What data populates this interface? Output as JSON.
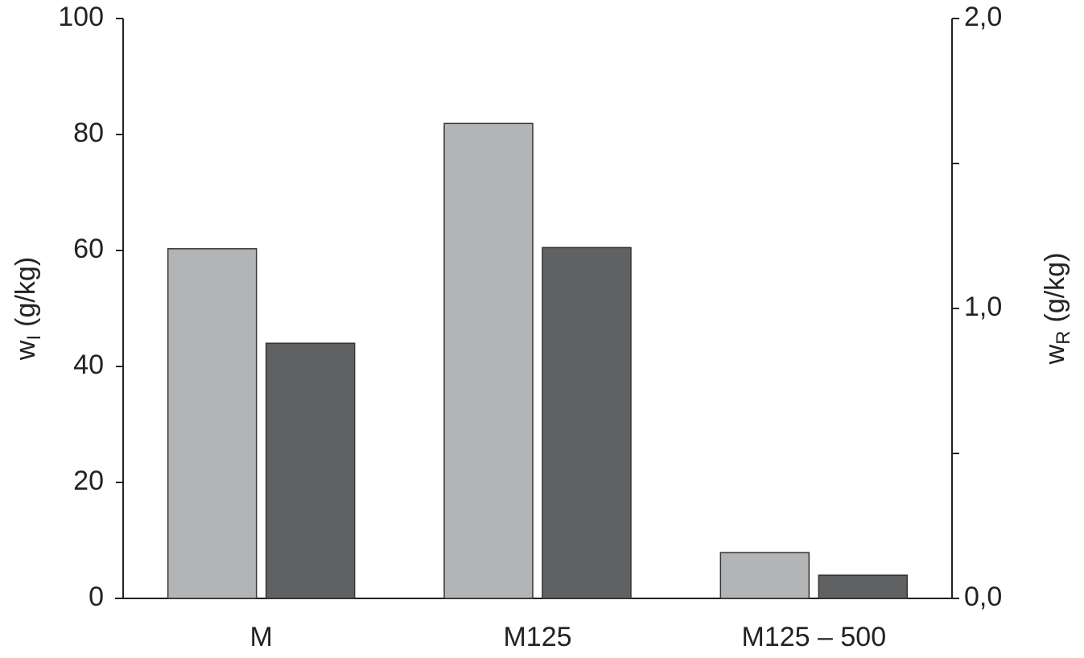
{
  "chart_data": {
    "type": "bar",
    "categories": [
      "M",
      "M125",
      "M125 – 500"
    ],
    "series": [
      {
        "color": "#b3b4b6",
        "values": [
          60.3,
          81.9,
          7.9
        ]
      },
      {
        "color": "#606163",
        "axis": "y2",
        "values": [
          0.88,
          1.21,
          0.08
        ]
      }
    ],
    "ylabel": {
      "main": "w",
      "sub": "I",
      "unit": "(g/kg)"
    },
    "y2label": {
      "main": "w",
      "sub": "R",
      "unit": "(g/kg)"
    },
    "ylim": [
      0,
      100
    ],
    "yticks": [
      0,
      20,
      40,
      60,
      80,
      100
    ],
    "y2lim": [
      0,
      2
    ],
    "y2ticks": [
      {
        "value": 0,
        "label": "0,0"
      },
      {
        "value": 1,
        "label": "1,0"
      },
      {
        "value": 2,
        "label": "2,0"
      }
    ],
    "y2minorticks": [
      0.5,
      1.5
    ],
    "grid": false
  }
}
